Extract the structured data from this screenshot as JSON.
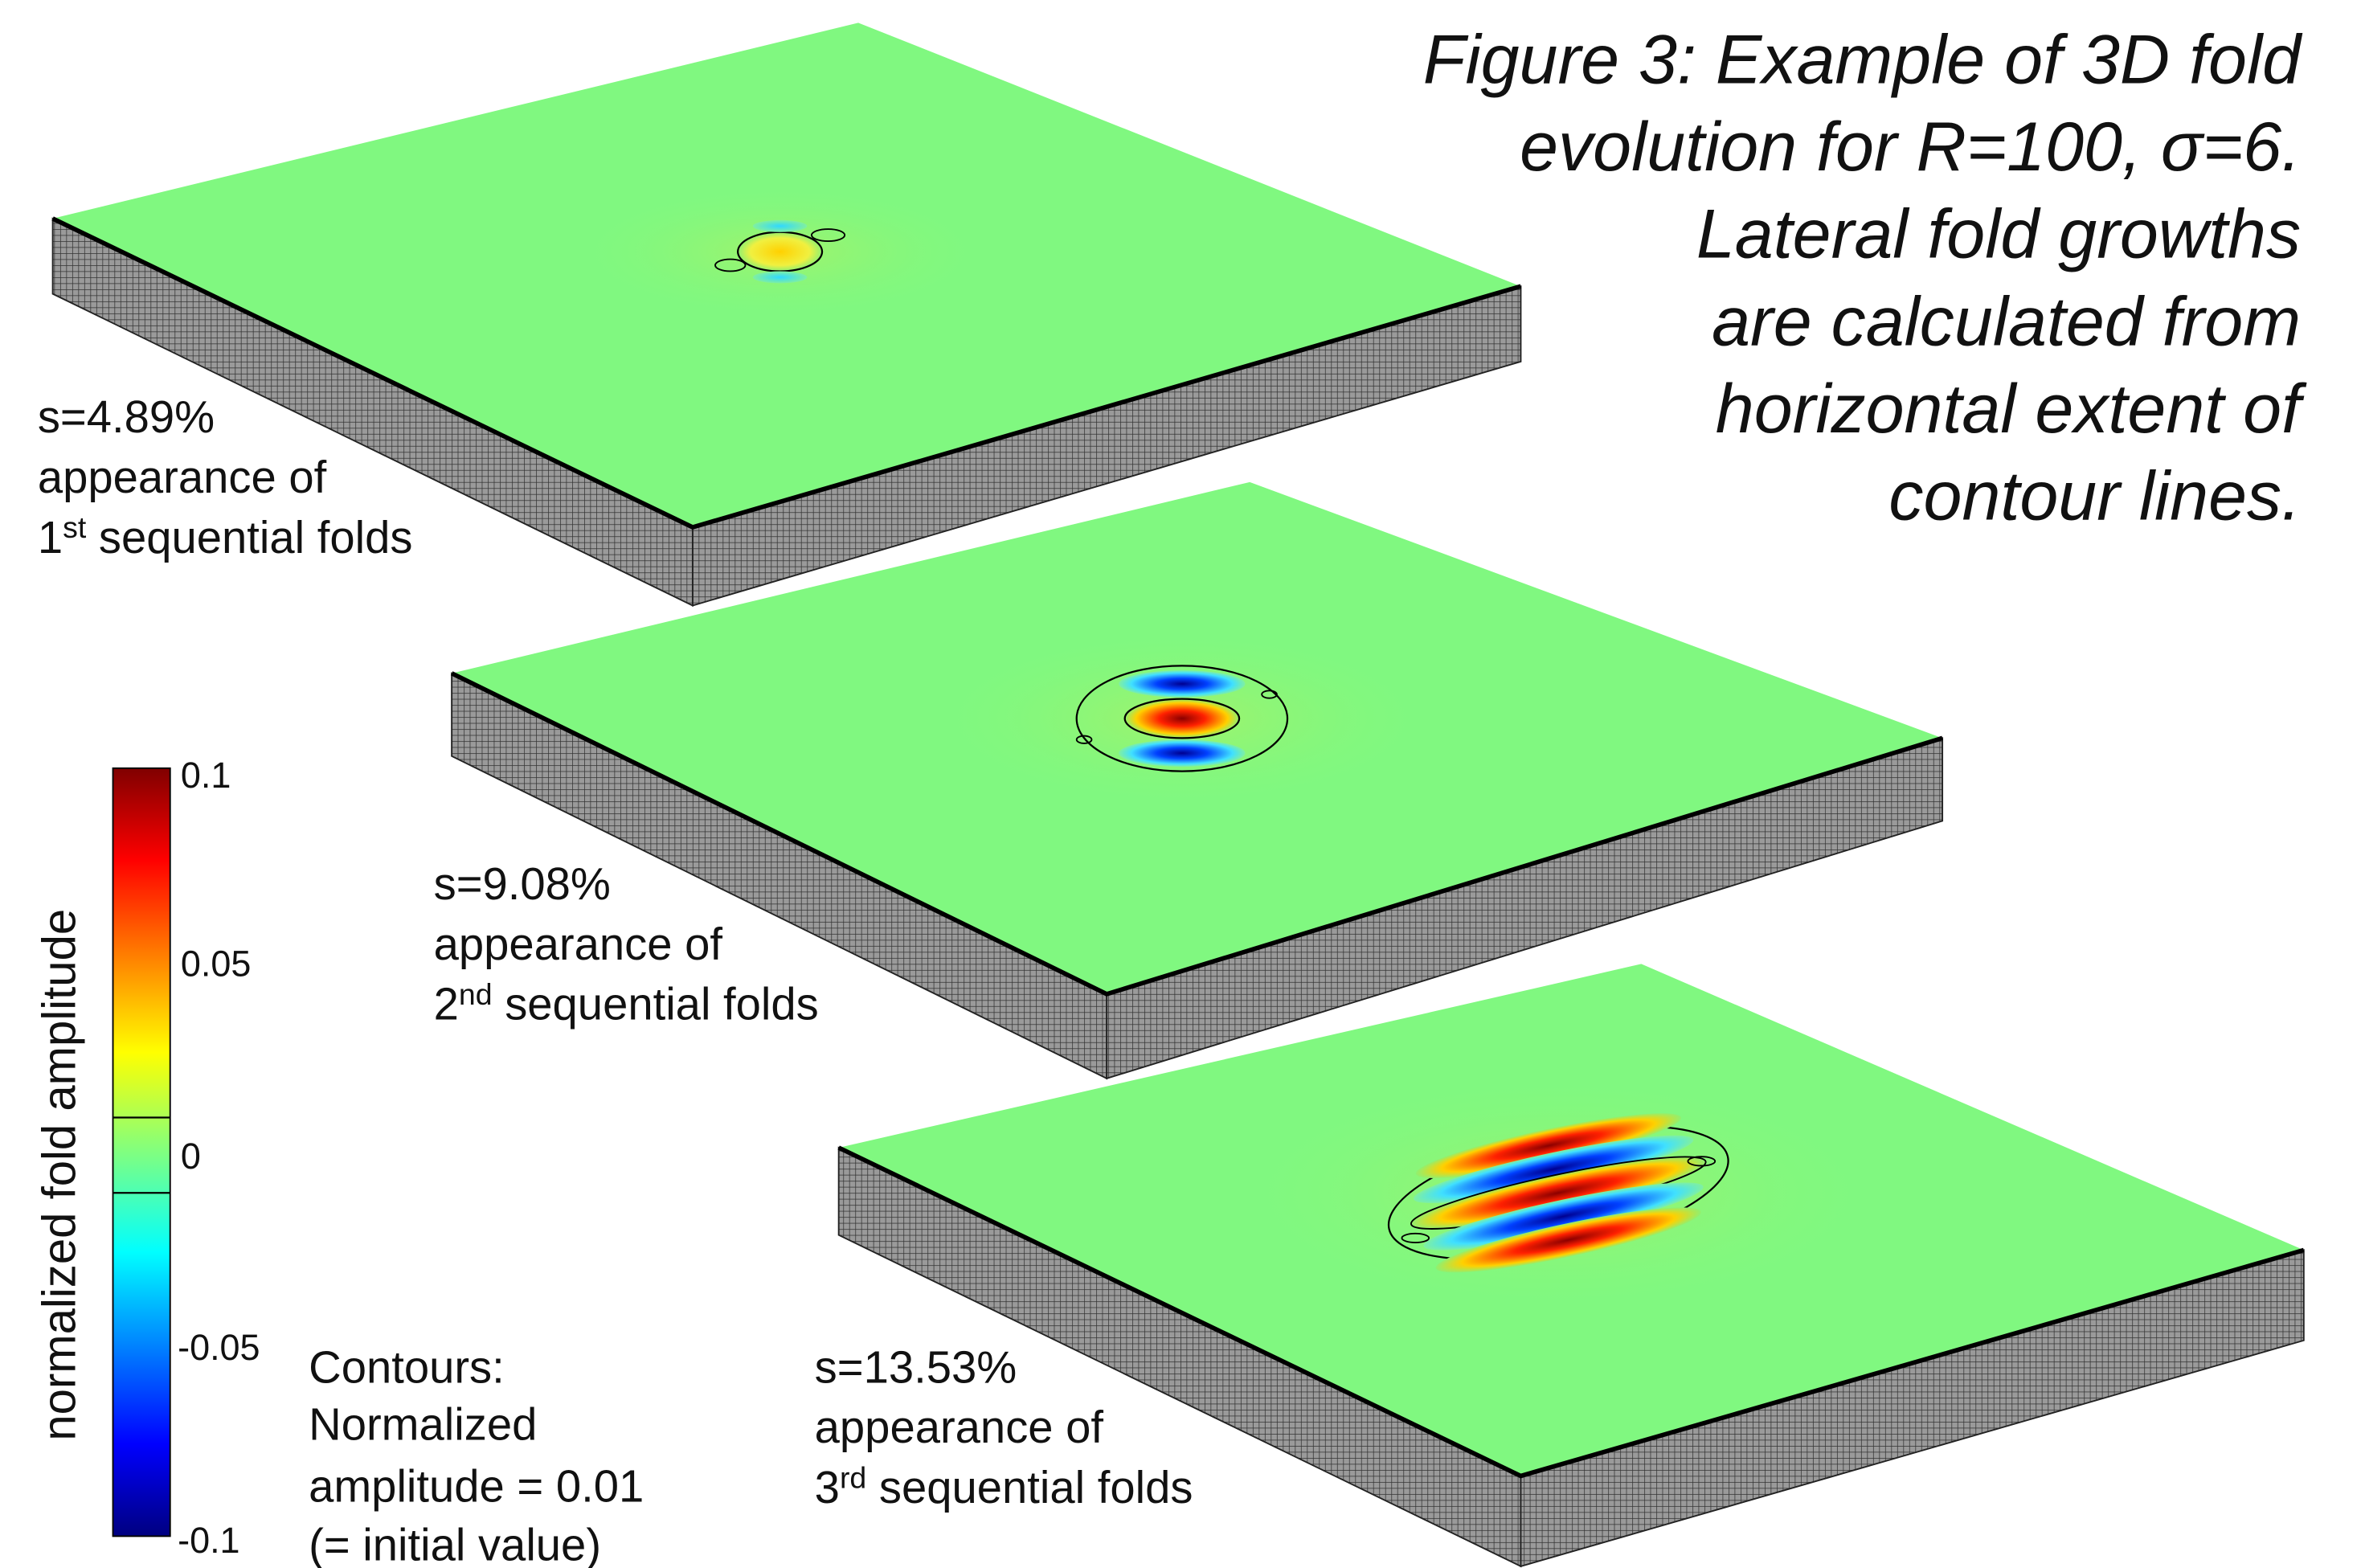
{
  "caption": {
    "lines": [
      "Figure 3: Example of 3D fold",
      "evolution for R=100, σ=6.",
      "Lateral fold growths",
      "are calculated from",
      "horizontal extent of",
      "contour lines."
    ]
  },
  "panels": [
    {
      "strain": "s=4.89%",
      "line2": "appearance of",
      "ordinal": "1",
      "suffix": "st",
      "line3": " sequential folds"
    },
    {
      "strain": "s=9.08%",
      "line2": "appearance of",
      "ordinal": "2",
      "suffix": "nd",
      "line3": " sequential folds"
    },
    {
      "strain": "s=13.53%",
      "line2": "appearance of",
      "ordinal": "3",
      "suffix": "rd",
      "line3": " sequential folds"
    }
  ],
  "colorbar": {
    "label": "normalized fold amplitude",
    "ticks": [
      "0.1",
      "0.05",
      "0",
      "-0.05",
      "-0.1"
    ]
  },
  "contours_note": {
    "lines": [
      "Contours:",
      "Normalized",
      "amplitude = 0.01",
      "(= initial value)"
    ]
  }
}
